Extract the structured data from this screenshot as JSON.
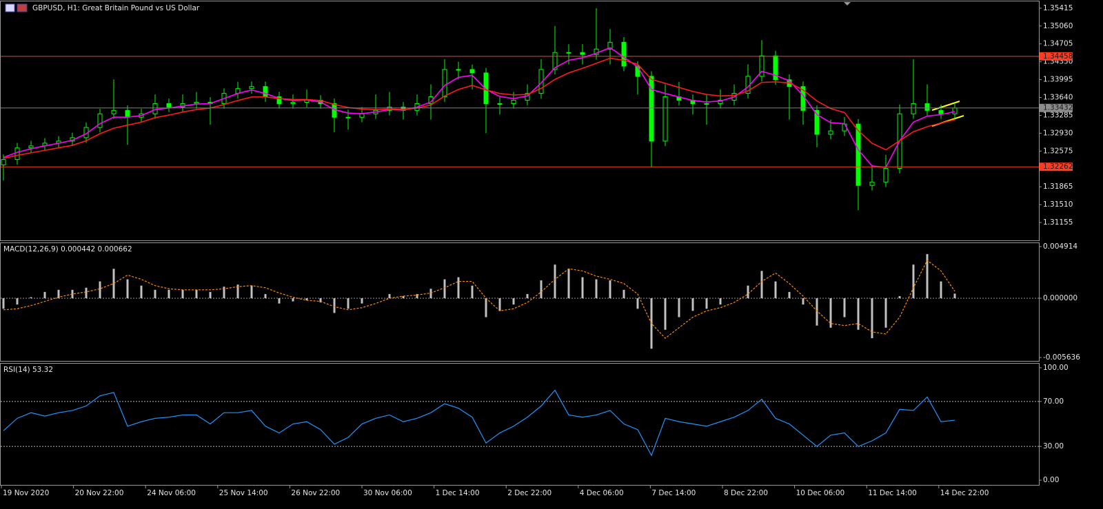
{
  "chart_data": [
    {
      "type": "candlestick",
      "title": "GBPUSD, H1:  Great Britain Pound vs US Dollar",
      "color": "#00ff00",
      "x_labels": [
        "19 Nov 2020",
        "20 Nov 22:00",
        "24 Nov 06:00",
        "25 Nov 14:00",
        "26 Nov 22:00",
        "30 Nov 06:00",
        "1 Dec 14:00",
        "2 Dec 22:00",
        "4 Dec 06:00",
        "7 Dec 14:00",
        "8 Dec 22:00",
        "10 Dec 06:00",
        "11 Dec 14:00",
        "14 Dec 22:00"
      ],
      "open": [
        1.323,
        1.32407,
        1.32637,
        1.32678,
        1.32732,
        1.32773,
        1.32841,
        1.33044,
        1.33315,
        1.33383,
        1.33247,
        1.33315,
        1.33518,
        1.3345,
        1.33518,
        1.33545,
        1.33518,
        1.33721,
        1.33816,
        1.33857,
        1.33654,
        1.33518,
        1.33545,
        1.33586,
        1.33518,
        1.33247,
        1.33247,
        1.33315,
        1.33383,
        1.3345,
        1.33383,
        1.33518,
        1.33654,
        1.34196,
        1.34196,
        1.34128,
        1.33518,
        1.33518,
        1.33586,
        1.33721,
        1.34196,
        1.34534,
        1.34534,
        1.34494,
        1.34602,
        1.34738,
        1.34263,
        1.3406,
        1.32773,
        1.33654,
        1.33586,
        1.33518,
        1.33518,
        1.33586,
        1.33721,
        1.3406,
        1.34467,
        1.33992,
        1.33857,
        1.33383,
        1.32908,
        1.32976,
        1.33112,
        1.31892,
        1.3196,
        1.32231,
        1.33315,
        1.33518,
        1.33383,
        1.33315
      ],
      "high": [
        1.32507,
        1.32737,
        1.32778,
        1.32832,
        1.32873,
        1.32941,
        1.33144,
        1.33415,
        1.34,
        1.33483,
        1.33415,
        1.337,
        1.33618,
        1.337,
        1.3375,
        1.33645,
        1.33821,
        1.3395,
        1.33957,
        1.33957,
        1.33754,
        1.337,
        1.338,
        1.33686,
        1.33618,
        1.334,
        1.3345,
        1.337,
        1.3375,
        1.3355,
        1.337,
        1.339,
        1.344,
        1.3435,
        1.34296,
        1.34228,
        1.3365,
        1.3375,
        1.339,
        1.344,
        1.3506,
        1.347,
        1.347,
        1.35415,
        1.35,
        1.34838,
        1.34363,
        1.3416,
        1.339,
        1.3395,
        1.337,
        1.337,
        1.338,
        1.339,
        1.343,
        1.3478,
        1.34567,
        1.341,
        1.33957,
        1.33483,
        1.332,
        1.3325,
        1.33212,
        1.323,
        1.325,
        1.335,
        1.344,
        1.339,
        1.335,
        1.33532
      ],
      "low": [
        1.3199,
        1.32307,
        1.32537,
        1.32578,
        1.32632,
        1.32673,
        1.32741,
        1.32944,
        1.33215,
        1.327,
        1.33147,
        1.33215,
        1.3335,
        1.3335,
        1.33418,
        1.331,
        1.33418,
        1.33621,
        1.33716,
        1.33554,
        1.33418,
        1.33418,
        1.33445,
        1.33418,
        1.3295,
        1.33,
        1.33147,
        1.33215,
        1.33283,
        1.332,
        1.33283,
        1.332,
        1.33554,
        1.34,
        1.338,
        1.3293,
        1.333,
        1.33418,
        1.33486,
        1.33621,
        1.34096,
        1.343,
        1.343,
        1.34394,
        1.343,
        1.34163,
        1.337,
        1.3225,
        1.32673,
        1.33486,
        1.333,
        1.331,
        1.33418,
        1.33486,
        1.33621,
        1.3396,
        1.33892,
        1.332,
        1.331,
        1.3265,
        1.32808,
        1.32876,
        1.314,
        1.31792,
        1.3186,
        1.32131,
        1.33215,
        1.33283,
        1.33215,
        1.33215
      ],
      "close": [
        1.32407,
        1.32637,
        1.32678,
        1.32732,
        1.32773,
        1.32841,
        1.33044,
        1.33315,
        1.33383,
        1.33247,
        1.33315,
        1.33518,
        1.3345,
        1.33518,
        1.33545,
        1.33518,
        1.33721,
        1.33816,
        1.33857,
        1.33654,
        1.33518,
        1.33545,
        1.33586,
        1.33518,
        1.33247,
        1.33247,
        1.33315,
        1.33383,
        1.3345,
        1.33383,
        1.33518,
        1.33654,
        1.34196,
        1.34196,
        1.34128,
        1.33518,
        1.33518,
        1.33586,
        1.33721,
        1.34196,
        1.34534,
        1.34534,
        1.34494,
        1.34602,
        1.34738,
        1.34263,
        1.3406,
        1.32773,
        1.33654,
        1.33586,
        1.33518,
        1.33518,
        1.33586,
        1.33721,
        1.3406,
        1.34467,
        1.33992,
        1.33857,
        1.33383,
        1.32908,
        1.32976,
        1.33112,
        1.31892,
        1.3196,
        1.32231,
        1.33315,
        1.33518,
        1.33383,
        1.33315,
        1.33432
      ],
      "series": [
        {
          "color": "#ff00ff",
          "values": [
            1.3245,
            1.3255,
            1.3262,
            1.3268,
            1.3273,
            1.3279,
            1.3292,
            1.3312,
            1.3325,
            1.3325,
            1.3328,
            1.334,
            1.3343,
            1.3347,
            1.3351,
            1.3352,
            1.3362,
            1.3372,
            1.3379,
            1.3372,
            1.3362,
            1.3358,
            1.3359,
            1.3355,
            1.334,
            1.3333,
            1.3332,
            1.3335,
            1.334,
            1.3339,
            1.3345,
            1.3355,
            1.3388,
            1.3404,
            1.3408,
            1.338,
            1.3366,
            1.3362,
            1.3367,
            1.3393,
            1.3423,
            1.3438,
            1.3443,
            1.3452,
            1.3463,
            1.3444,
            1.3425,
            1.338,
            1.3372,
            1.3365,
            1.3358,
            1.3355,
            1.3357,
            1.3365,
            1.3385,
            1.3416,
            1.3408,
            1.3397,
            1.3368,
            1.333,
            1.3314,
            1.3312,
            1.326,
            1.3228,
            1.3225,
            1.3278,
            1.3315,
            1.3327,
            1.333,
            1.3336
          ]
        },
        {
          "color": "#ff1a1a",
          "values": [
            1.3243,
            1.3249,
            1.3254,
            1.3259,
            1.3264,
            1.3269,
            1.3278,
            1.3292,
            1.3303,
            1.3309,
            1.3315,
            1.3324,
            1.3329,
            1.3335,
            1.334,
            1.3343,
            1.335,
            1.3358,
            1.3365,
            1.3365,
            1.3362,
            1.336,
            1.336,
            1.3358,
            1.335,
            1.3344,
            1.3341,
            1.334,
            1.3341,
            1.334,
            1.3343,
            1.3349,
            1.3367,
            1.338,
            1.3388,
            1.3379,
            1.3372,
            1.3369,
            1.337,
            1.3382,
            1.34,
            1.3413,
            1.3422,
            1.3432,
            1.3442,
            1.3438,
            1.343,
            1.34,
            1.3392,
            1.3384,
            1.3376,
            1.337,
            1.3367,
            1.3368,
            1.3377,
            1.3394,
            1.3395,
            1.3393,
            1.3379,
            1.3357,
            1.3342,
            1.3334,
            1.3298,
            1.3273,
            1.326,
            1.3278,
            1.3296,
            1.3306,
            1.3313,
            1.332
          ]
        }
      ],
      "levels": [
        {
          "value": 1.34458,
          "color": "#ff4000",
          "label_color": "#ff3c1e"
        },
        {
          "value": 1.33432,
          "color": "#808080",
          "label_color": "#8c8c8c"
        },
        {
          "value": 1.32262,
          "color": "#ff4000",
          "label_color": "#ff3c1e"
        }
      ],
      "ylim": [
        1.308,
        1.3555
      ],
      "yticks": [
        1.35415,
        {
          "value": 1.3506,
          "label": "1.35060"
        },
        1.34705,
        {
          "value": 1.3435,
          "label": "1.34350"
        },
        1.33995,
        {
          "value": 1.3364,
          "label": "1.33640"
        },
        1.33285,
        {
          "value": 1.3293,
          "label": "1.32930"
        },
        1.32575,
        1.31865,
        {
          "value": 1.3151,
          "label": "1.31510"
        },
        1.31155
      ]
    },
    {
      "type": "macd",
      "title": "MACD(12,26,9) 0.000442 0.000662",
      "histogram_color": "#c0c0c0",
      "signal_color": "#ff8c00",
      "histogram": [
        -0.001,
        -0.0006,
        0.0001,
        0.0006,
        0.0008,
        0.0008,
        0.001,
        0.0016,
        0.0028,
        0.0018,
        0.0012,
        0.0008,
        0.0008,
        0.0008,
        0.0008,
        0.0006,
        0.0011,
        0.0013,
        0.0012,
        0.0004,
        -0.0005,
        -0.0003,
        -0.0002,
        -0.0004,
        -0.0014,
        -0.001,
        -0.0005,
        0.0,
        0.0004,
        0.0002,
        0.0004,
        0.0009,
        0.0018,
        0.002,
        0.0012,
        -0.0018,
        -0.0012,
        -0.0006,
        0.0004,
        0.0017,
        0.0032,
        0.0028,
        0.002,
        0.0018,
        0.0017,
        0.0008,
        -0.001,
        -0.0048,
        -0.003,
        -0.0018,
        -0.0012,
        -0.001,
        -0.0006,
        0.0,
        0.0012,
        0.0026,
        0.0016,
        0.0006,
        -0.0006,
        -0.0026,
        -0.0028,
        -0.0018,
        -0.003,
        -0.0038,
        -0.0028,
        0.0002,
        0.0032,
        0.0042,
        0.0016,
        0.000442
      ],
      "signal": [
        -0.0011,
        -0.001,
        -0.0007,
        -0.0003,
        0.0001,
        0.0004,
        0.0006,
        0.0009,
        0.0014,
        0.0022,
        0.0018,
        0.0012,
        0.0009,
        0.0008,
        0.0008,
        0.0008,
        0.0009,
        0.0011,
        0.0012,
        0.001,
        0.0005,
        0.0001,
        -0.0002,
        -0.0003,
        -0.0008,
        -0.0011,
        -0.0009,
        -0.0005,
        0.0,
        0.0002,
        0.0003,
        0.0005,
        0.001,
        0.0016,
        0.0016,
        0.0,
        -0.0012,
        -0.001,
        -0.0004,
        0.0006,
        0.0018,
        0.0028,
        0.0026,
        0.0021,
        0.0018,
        0.0014,
        0.0004,
        -0.0024,
        -0.0038,
        -0.0028,
        -0.0018,
        -0.0012,
        -0.0009,
        -0.0004,
        0.0004,
        0.0016,
        0.0024,
        0.0014,
        0.0002,
        -0.0012,
        -0.0024,
        -0.0026,
        -0.0024,
        -0.0032,
        -0.0034,
        -0.0018,
        0.001,
        0.0036,
        0.0026,
        0.000662
      ],
      "ylim": [
        -0.00596,
        0.00524
      ],
      "yticks": [
        0.004914,
        {
          "value": 0,
          "label": "0.000000"
        },
        -0.005636
      ]
    },
    {
      "type": "line",
      "title": "RSI(14) 53.32",
      "color": "#1e96ff",
      "values": [
        44,
        55,
        60,
        57,
        60,
        62,
        66,
        75,
        78,
        48,
        52,
        55,
        56,
        58,
        58,
        50,
        60,
        60,
        62,
        48,
        42,
        50,
        52,
        45,
        32,
        38,
        50,
        55,
        58,
        52,
        55,
        60,
        68,
        64,
        56,
        33,
        42,
        48,
        56,
        66,
        80,
        58,
        56,
        58,
        62,
        50,
        45,
        22,
        55,
        52,
        50,
        48,
        52,
        56,
        62,
        72,
        55,
        50,
        40,
        30,
        40,
        42,
        30,
        35,
        42,
        63,
        62,
        74,
        52,
        53.32
      ],
      "levels": [
        70,
        30
      ],
      "ylim": [
        -4.2,
        103.6
      ],
      "yticks": [
        {
          "value": 100,
          "label": "100.00"
        },
        {
          "value": 70,
          "label": "70.00"
        },
        {
          "value": 30,
          "label": "30.00"
        },
        {
          "value": 0,
          "label": "0.00"
        }
      ]
    }
  ]
}
